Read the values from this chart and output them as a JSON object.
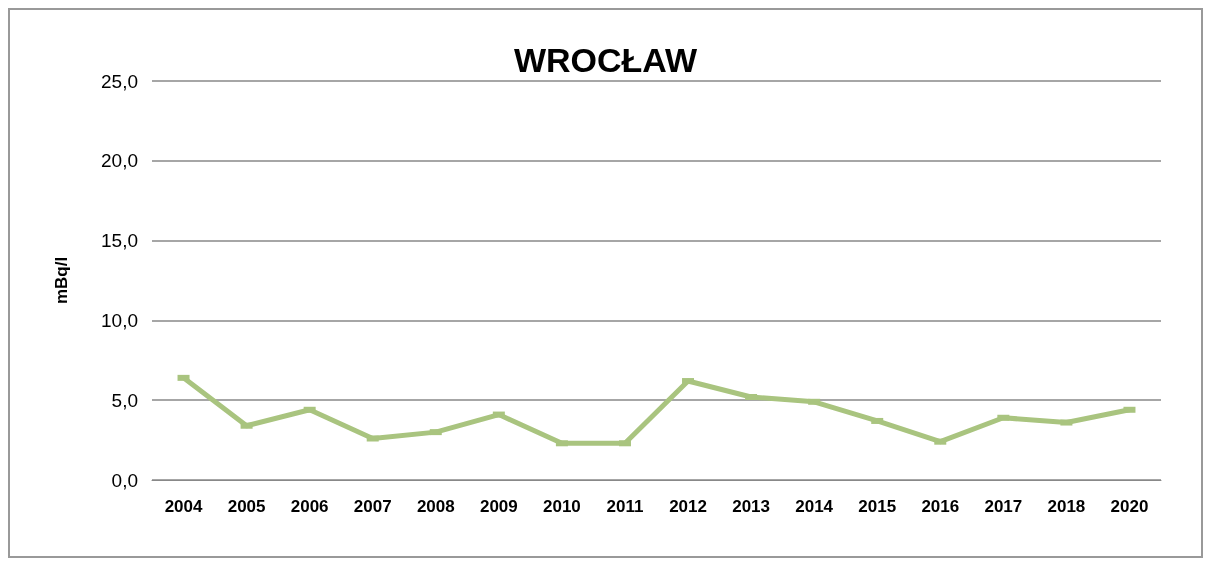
{
  "chart_data": {
    "type": "line",
    "title": "WROCŁAW",
    "ylabel": "mBq/l",
    "categories": [
      "2004",
      "2005",
      "2006",
      "2007",
      "2008",
      "2009",
      "2010",
      "2011",
      "2012",
      "2013",
      "2014",
      "2015",
      "2016",
      "2017",
      "2018",
      "2020"
    ],
    "series": [
      {
        "color": "#a9c47f",
        "values": [
          6.4,
          3.4,
          4.4,
          2.6,
          3.0,
          4.1,
          2.3,
          2.3,
          6.2,
          5.2,
          4.9,
          3.7,
          2.4,
          3.9,
          3.6,
          4.4
        ]
      }
    ],
    "ylim": [
      0,
      25
    ],
    "yticks": [
      {
        "value": 0,
        "label": "0,0"
      },
      {
        "value": 5,
        "label": "5,0"
      },
      {
        "value": 10,
        "label": "10,0"
      },
      {
        "value": 15,
        "label": "15,0"
      },
      {
        "value": 20,
        "label": "20,0"
      },
      {
        "value": 25,
        "label": "25,0"
      }
    ],
    "grid": "y",
    "marker": "square",
    "line_style": "solid"
  }
}
